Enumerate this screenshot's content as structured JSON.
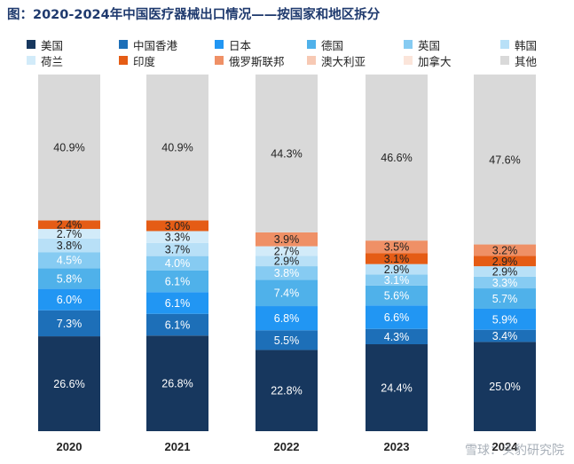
{
  "title": "图：2020-2024年中国医疗器械出口情况——按国家和地区拆分",
  "watermark": "雪球：头豹研究院",
  "chart_data": {
    "type": "bar",
    "stacked": true,
    "percent_stacked": true,
    "categories": [
      "2020",
      "2021",
      "2022",
      "2023",
      "2024"
    ],
    "ylim": [
      0,
      100
    ],
    "legend_position": "top",
    "series": [
      {
        "name": "美国",
        "color": "#17375e",
        "label_color": "#ffffff",
        "values": [
          26.6,
          26.8,
          22.8,
          24.4,
          25.0
        ]
      },
      {
        "name": "中国香港",
        "color": "#1d6fb8",
        "label_color": "#ffffff",
        "values": [
          7.3,
          6.1,
          5.5,
          4.3,
          3.4
        ]
      },
      {
        "name": "日本",
        "color": "#2196f3",
        "label_color": "#ffffff",
        "values": [
          6.0,
          6.1,
          6.8,
          6.6,
          5.9
        ]
      },
      {
        "name": "德国",
        "color": "#4fb1ea",
        "label_color": "#ffffff",
        "values": [
          5.8,
          6.1,
          7.4,
          5.6,
          5.7
        ]
      },
      {
        "name": "英国",
        "color": "#86cbf2",
        "label_color": "#ffffff",
        "values": [
          4.5,
          4.0,
          3.8,
          3.1,
          3.3
        ]
      },
      {
        "name": "韩国",
        "color": "#b8e0f7",
        "label_color": "#222222",
        "values": [
          3.8,
          3.7,
          2.9,
          2.9,
          2.9
        ]
      },
      {
        "name": "荷兰",
        "color": "#d2ebf9",
        "label_color": "#222222",
        "values": [
          2.7,
          3.3,
          2.7,
          0,
          0
        ]
      },
      {
        "name": "印度",
        "color": "#e55c15",
        "label_color": "#222222",
        "values": [
          2.4,
          3.0,
          0,
          3.1,
          2.9
        ]
      },
      {
        "name": "俄罗斯联邦",
        "color": "#ef9066",
        "label_color": "#222222",
        "values": [
          0,
          0,
          3.9,
          3.5,
          3.2
        ]
      },
      {
        "name": "澳大利亚",
        "color": "#f7c9b4",
        "label_color": "#222222",
        "values": [
          0,
          0,
          0,
          0,
          0
        ]
      },
      {
        "name": "加拿大",
        "color": "#fbe5da",
        "label_color": "#222222",
        "values": [
          0,
          0,
          0,
          0,
          0
        ]
      },
      {
        "name": "其他",
        "color": "#d9d9d9",
        "label_color": "#222222",
        "values": [
          40.9,
          40.9,
          44.3,
          46.6,
          47.6
        ]
      }
    ]
  }
}
